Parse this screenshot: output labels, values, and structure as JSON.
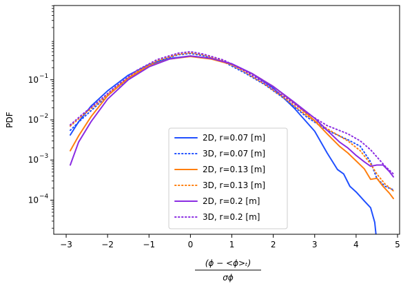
{
  "chart_data": {
    "type": "line",
    "title": "",
    "ylabel": "PDF",
    "xlabel_numerator": "(ϕ − <ϕ>ₜ)",
    "xlabel_denominator": "σϕ",
    "yscale": "log",
    "xlim": [
      -3.3,
      5.05
    ],
    "ylim_log10": [
      -4.85,
      0.85
    ],
    "x_ticks": [
      -3,
      -2,
      -1,
      0,
      1,
      2,
      3,
      4,
      5
    ],
    "x_tick_labels": [
      "−3",
      "−2",
      "−1",
      "0",
      "1",
      "2",
      "3",
      "4",
      "5"
    ],
    "y_ticks_log10": [
      -4,
      -3,
      -2,
      -1
    ],
    "y_tick_labels": [
      "10",
      "10",
      "10",
      "10"
    ],
    "y_tick_exponents": [
      "−4",
      "−3",
      "−2",
      "−1"
    ],
    "grid": false,
    "legend_position": "lower-center",
    "series": [
      {
        "name": "2D, r=0.07 [m]",
        "color": "#1f4fff",
        "style": "solid",
        "points": [
          [
            -2.9,
            0.0042
          ],
          [
            -2.7,
            0.009
          ],
          [
            -2.4,
            0.022
          ],
          [
            -2.0,
            0.053
          ],
          [
            -1.5,
            0.13
          ],
          [
            -1.0,
            0.24
          ],
          [
            -0.5,
            0.34
          ],
          [
            0.0,
            0.39
          ],
          [
            0.5,
            0.34
          ],
          [
            1.0,
            0.25
          ],
          [
            1.5,
            0.14
          ],
          [
            2.0,
            0.062
          ],
          [
            2.5,
            0.02
          ],
          [
            3.0,
            0.0052
          ],
          [
            3.3,
            0.0015
          ],
          [
            3.55,
            0.00058
          ],
          [
            3.7,
            0.00045
          ],
          [
            3.85,
            0.00022
          ],
          [
            4.0,
            0.00016
          ],
          [
            4.2,
            9.5e-05
          ],
          [
            4.35,
            6.5e-05
          ],
          [
            4.45,
            2.8e-05
          ],
          [
            4.5,
            9e-06
          ]
        ]
      },
      {
        "name": "3D, r=0.07 [m]",
        "color": "#1f4fff",
        "style": "dotted",
        "points": [
          [
            -2.9,
            0.0055
          ],
          [
            -2.6,
            0.011
          ],
          [
            -2.2,
            0.026
          ],
          [
            -1.8,
            0.06
          ],
          [
            -1.3,
            0.15
          ],
          [
            -0.8,
            0.29
          ],
          [
            -0.3,
            0.42
          ],
          [
            0.0,
            0.45
          ],
          [
            0.3,
            0.4
          ],
          [
            0.8,
            0.28
          ],
          [
            1.3,
            0.15
          ],
          [
            1.8,
            0.075
          ],
          [
            2.3,
            0.032
          ],
          [
            2.8,
            0.012
          ],
          [
            3.3,
            0.0055
          ],
          [
            3.8,
            0.0032
          ],
          [
            4.1,
            0.0022
          ],
          [
            4.35,
            0.0009
          ],
          [
            4.5,
            0.00035
          ],
          [
            4.7,
            0.00022
          ],
          [
            4.9,
            0.00018
          ]
        ]
      },
      {
        "name": "2D, r=0.13 [m]",
        "color": "#ff7f0e",
        "style": "solid",
        "points": [
          [
            -2.9,
            0.0017
          ],
          [
            -2.7,
            0.004
          ],
          [
            -2.4,
            0.012
          ],
          [
            -2.0,
            0.04
          ],
          [
            -1.5,
            0.11
          ],
          [
            -1.0,
            0.22
          ],
          [
            -0.5,
            0.33
          ],
          [
            0.0,
            0.38
          ],
          [
            0.5,
            0.33
          ],
          [
            1.0,
            0.24
          ],
          [
            1.5,
            0.14
          ],
          [
            2.0,
            0.068
          ],
          [
            2.5,
            0.027
          ],
          [
            3.0,
            0.0095
          ],
          [
            3.3,
            0.0045
          ],
          [
            3.6,
            0.0022
          ],
          [
            3.8,
            0.0015
          ],
          [
            4.0,
            0.00095
          ],
          [
            4.2,
            0.0006
          ],
          [
            4.35,
            0.00033
          ],
          [
            4.5,
            0.00035
          ],
          [
            4.65,
            0.00022
          ],
          [
            4.8,
            0.00015
          ],
          [
            4.9,
            0.00011
          ]
        ]
      },
      {
        "name": "3D, r=0.13 [m]",
        "color": "#ff7f0e",
        "style": "dotted",
        "points": [
          [
            -2.9,
            0.007
          ],
          [
            -2.6,
            0.013
          ],
          [
            -2.2,
            0.028
          ],
          [
            -1.8,
            0.065
          ],
          [
            -1.3,
            0.16
          ],
          [
            -0.8,
            0.3
          ],
          [
            -0.3,
            0.43
          ],
          [
            0.0,
            0.47
          ],
          [
            0.3,
            0.42
          ],
          [
            0.8,
            0.3
          ],
          [
            1.3,
            0.16
          ],
          [
            1.8,
            0.077
          ],
          [
            2.3,
            0.033
          ],
          [
            2.8,
            0.013
          ],
          [
            3.3,
            0.006
          ],
          [
            3.8,
            0.003
          ],
          [
            4.1,
            0.0017
          ],
          [
            4.35,
            0.0008
          ],
          [
            4.5,
            0.00045
          ],
          [
            4.7,
            0.00025
          ],
          [
            4.9,
            0.00017
          ]
        ]
      },
      {
        "name": "2D, r=0.2 [m]",
        "color": "#8a2be2",
        "style": "solid",
        "points": [
          [
            -2.9,
            0.00075
          ],
          [
            -2.7,
            0.0028
          ],
          [
            -2.4,
            0.009
          ],
          [
            -2.0,
            0.033
          ],
          [
            -1.5,
            0.1
          ],
          [
            -1.0,
            0.21
          ],
          [
            -0.5,
            0.33
          ],
          [
            0.0,
            0.39
          ],
          [
            0.5,
            0.34
          ],
          [
            1.0,
            0.25
          ],
          [
            1.5,
            0.14
          ],
          [
            2.0,
            0.068
          ],
          [
            2.5,
            0.028
          ],
          [
            3.0,
            0.011
          ],
          [
            3.3,
            0.0055
          ],
          [
            3.6,
            0.0028
          ],
          [
            3.8,
            0.002
          ],
          [
            4.0,
            0.0013
          ],
          [
            4.2,
            0.0009
          ],
          [
            4.35,
            0.0007
          ],
          [
            4.5,
            0.00075
          ],
          [
            4.65,
            0.00075
          ],
          [
            4.8,
            0.00052
          ],
          [
            4.9,
            0.00038
          ]
        ]
      },
      {
        "name": "3D, r=0.2 [m]",
        "color": "#8a2be2",
        "style": "dotted",
        "points": [
          [
            -2.9,
            0.0075
          ],
          [
            -2.6,
            0.014
          ],
          [
            -2.2,
            0.03
          ],
          [
            -1.8,
            0.068
          ],
          [
            -1.3,
            0.17
          ],
          [
            -0.8,
            0.32
          ],
          [
            -0.3,
            0.46
          ],
          [
            0.0,
            0.5
          ],
          [
            0.3,
            0.44
          ],
          [
            0.8,
            0.31
          ],
          [
            1.3,
            0.17
          ],
          [
            1.8,
            0.082
          ],
          [
            2.3,
            0.036
          ],
          [
            2.8,
            0.015
          ],
          [
            3.3,
            0.0072
          ],
          [
            3.8,
            0.0045
          ],
          [
            4.1,
            0.003
          ],
          [
            4.35,
            0.0018
          ],
          [
            4.5,
            0.0012
          ],
          [
            4.7,
            0.0007
          ],
          [
            4.9,
            0.00045
          ]
        ]
      }
    ]
  }
}
